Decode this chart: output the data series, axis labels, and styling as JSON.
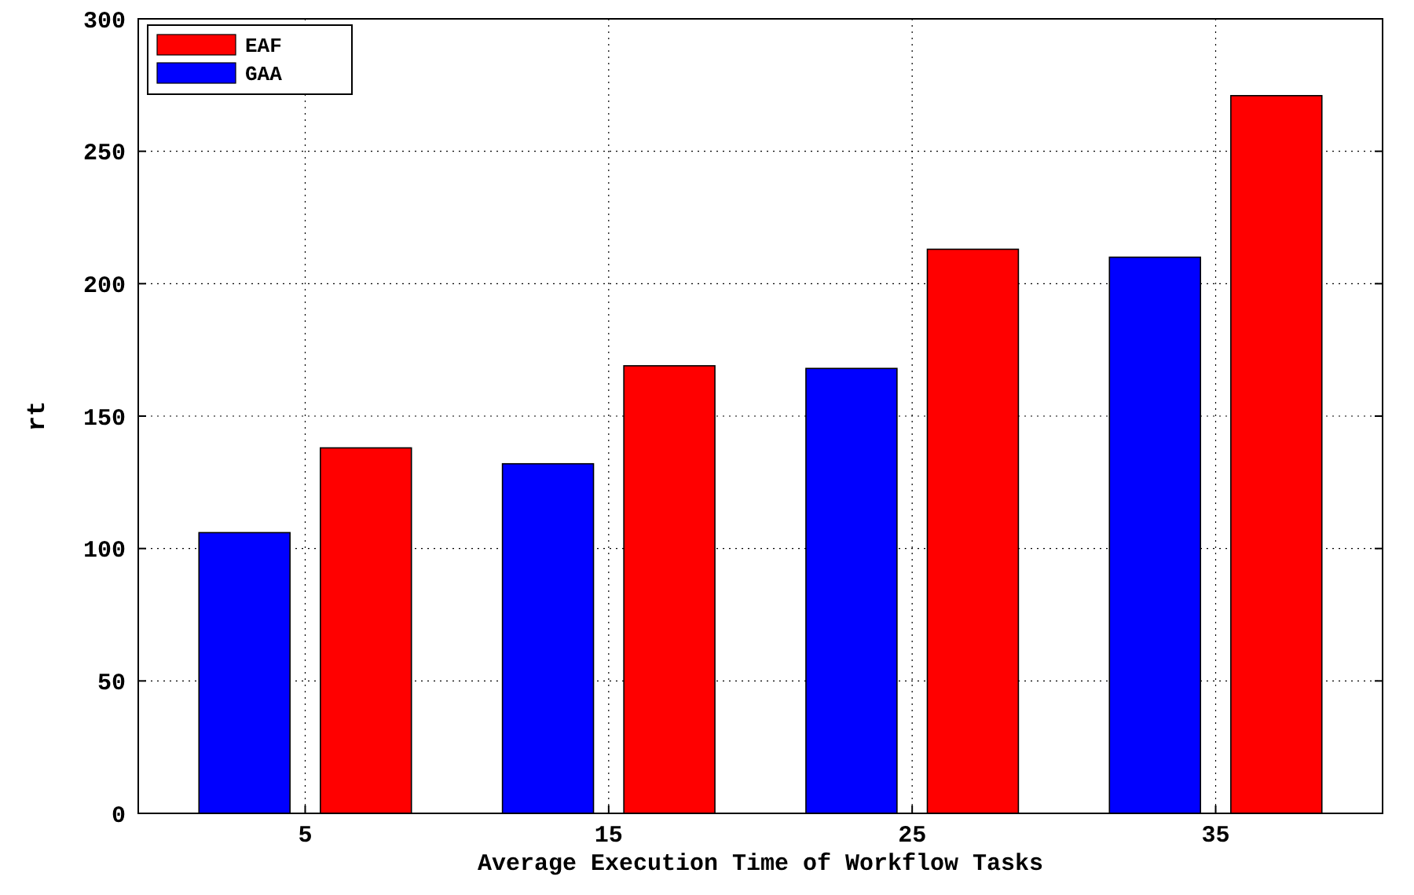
{
  "chart_data": {
    "type": "bar",
    "xlabel": "Average Execution Time of Workflow Tasks",
    "ylabel": "rt",
    "categories": [
      "5",
      "15",
      "25",
      "35"
    ],
    "series": [
      {
        "name": "GAA",
        "color": "#0000ff",
        "values": [
          106,
          132,
          168,
          210
        ]
      },
      {
        "name": "EAF",
        "color": "#ff0000",
        "values": [
          138,
          169,
          213,
          271
        ]
      }
    ],
    "ylim": [
      0,
      300
    ],
    "yticks": [
      0,
      50,
      100,
      150,
      200,
      250,
      300
    ],
    "grid": true,
    "legend": "top left"
  }
}
